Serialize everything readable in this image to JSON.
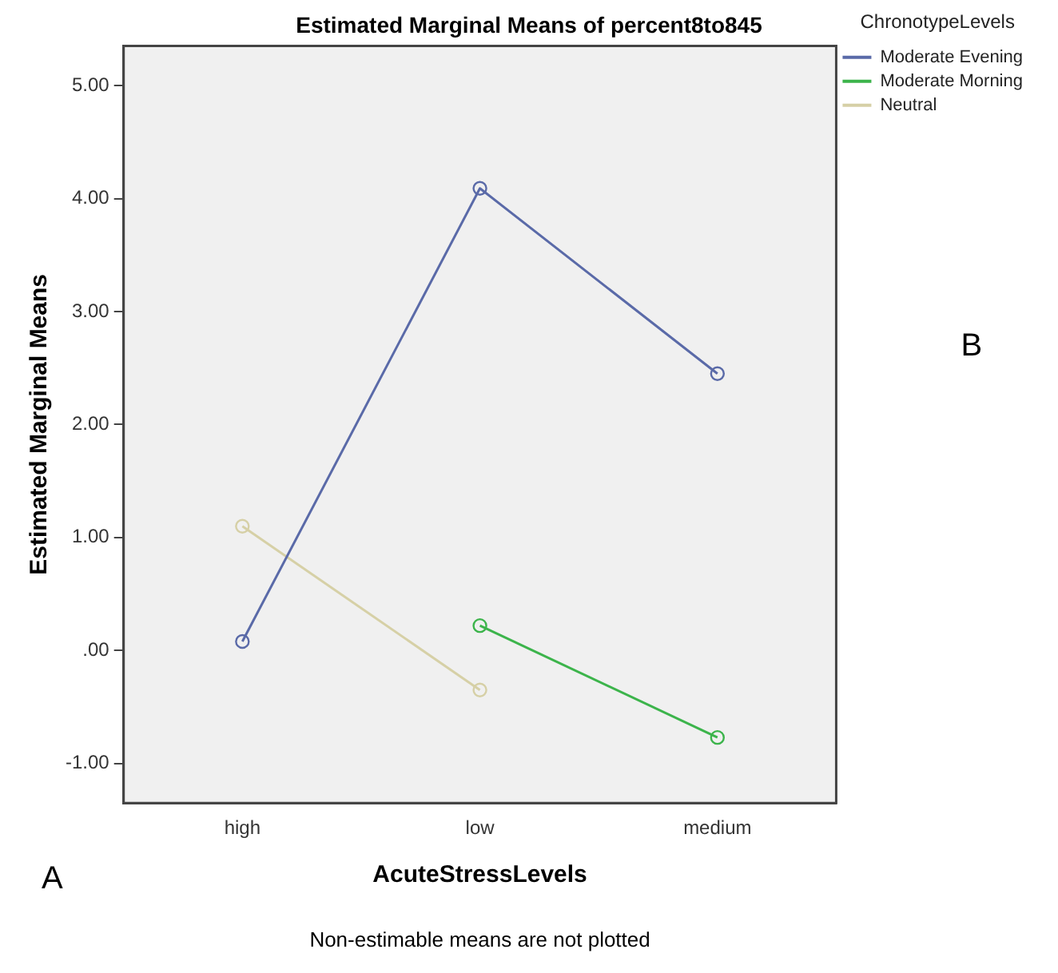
{
  "chart_data": {
    "type": "line",
    "title": "Estimated Marginal Means of percent8to845",
    "xlabel": "AcuteStressLevels",
    "ylabel": "Estimated Marginal Means",
    "legend_title": "ChronotypeLevels",
    "categories": [
      "high",
      "low",
      "medium"
    ],
    "series": [
      {
        "name": "Moderate Evening",
        "color": "#5a6aa8",
        "values": [
          0.08,
          4.09,
          2.45
        ]
      },
      {
        "name": "Moderate Morning",
        "color": "#3cb44b",
        "values": [
          null,
          0.22,
          -0.77
        ]
      },
      {
        "name": "Neutral",
        "color": "#d6d0a6",
        "values": [
          1.1,
          -0.35,
          null
        ]
      }
    ],
    "ylim": [
      -1.35,
      5.35
    ],
    "yticks": [
      {
        "value": -1,
        "label": "-1.00"
      },
      {
        "value": 0,
        "label": ".00"
      },
      {
        "value": 1,
        "label": "1.00"
      },
      {
        "value": 2,
        "label": "2.00"
      },
      {
        "value": 3,
        "label": "3.00"
      },
      {
        "value": 4,
        "label": "4.00"
      },
      {
        "value": 5,
        "label": "5.00"
      }
    ],
    "grid": false,
    "legend": "top right",
    "marker": "circle",
    "line_style": "solid",
    "annotations": [
      "A",
      "B",
      "Non-estimable means are not plotted"
    ]
  }
}
